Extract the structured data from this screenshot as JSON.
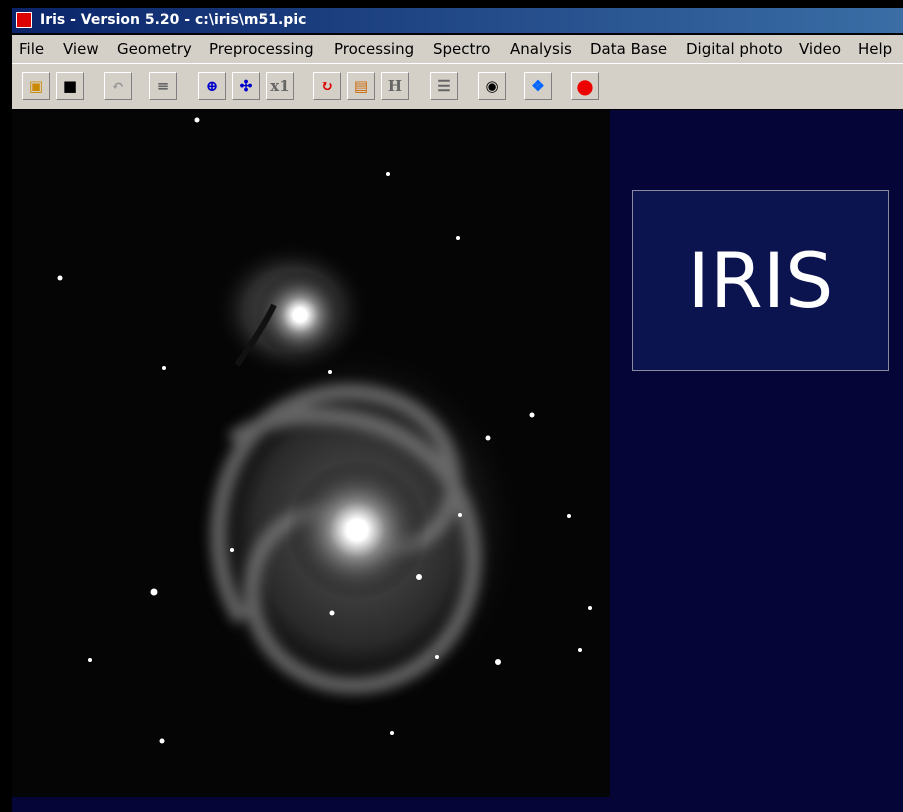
{
  "window": {
    "title": "Iris - Version 5.20 - c:\\iris\\m51.pic"
  },
  "menu": [
    "File",
    "View",
    "Geometry",
    "Preprocessing",
    "Processing",
    "Spectro",
    "Analysis",
    "Data Base",
    "Digital photo",
    "Video",
    "Help"
  ],
  "toolbar": {
    "zoom_label": "x1",
    "histogram_label": "H"
  },
  "logo": "IRIS"
}
